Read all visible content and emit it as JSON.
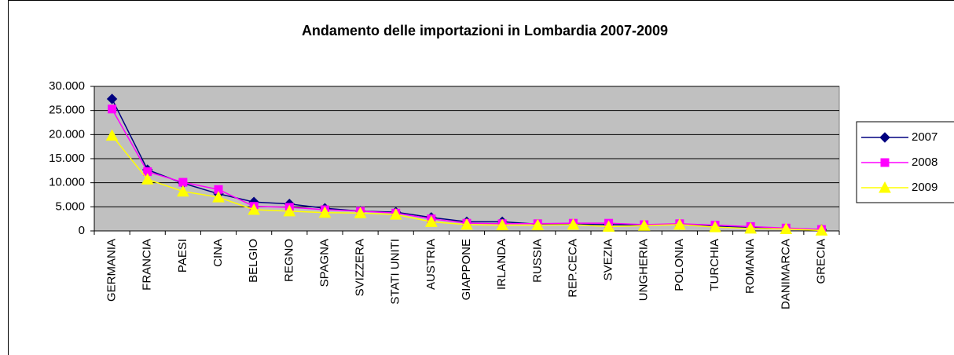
{
  "chart_data": {
    "type": "line",
    "title": "Andamento delle importazioni in Lombardia 2007-2009",
    "categories": [
      "GERMANIA",
      "FRANCIA",
      "PAESI",
      "CINA",
      "BELGIO",
      "REGNO",
      "SPAGNA",
      "SVIZZERA",
      "STATI UNITI",
      "AUSTRIA",
      "GIAPPONE",
      "IRLANDA",
      "RUSSIA",
      "REP.CECA",
      "SVEZIA",
      "UNGHERIA",
      "POLONIA",
      "TURCHIA",
      "ROMANIA",
      "DANIMARCA",
      "GRECIA"
    ],
    "series": [
      {
        "name": "2007",
        "color": "#000080",
        "marker": "diamond",
        "values": [
          27400,
          12700,
          9900,
          7700,
          6000,
          5600,
          4700,
          4100,
          3900,
          2800,
          1900,
          1900,
          1400,
          1400,
          1300,
          1200,
          1300,
          1000,
          700,
          500,
          300
        ]
      },
      {
        "name": "2008",
        "color": "#ff00ff",
        "marker": "square",
        "values": [
          25300,
          12300,
          10100,
          8600,
          5100,
          4900,
          4400,
          4100,
          3700,
          2500,
          1600,
          1500,
          1500,
          1600,
          1600,
          1300,
          1500,
          1200,
          900,
          600,
          300
        ]
      },
      {
        "name": "2009",
        "color": "#ffff00",
        "marker": "triangle",
        "values": [
          19800,
          10700,
          8200,
          7000,
          4400,
          4100,
          3800,
          3700,
          3400,
          1900,
          1300,
          1200,
          1200,
          1300,
          900,
          1100,
          1300,
          800,
          500,
          400,
          100
        ]
      }
    ],
    "ylim": [
      0,
      30000
    ],
    "yticks": [
      0,
      {
        "value": 5000,
        "label": "5.000"
      },
      {
        "value": 10000,
        "label": "10.000"
      },
      {
        "value": 15000,
        "label": "15.000"
      },
      {
        "value": 20000,
        "label": "20.000"
      },
      {
        "value": 25000,
        "label": "25.000"
      },
      {
        "value": 30000,
        "label": "30.000"
      }
    ],
    "grid": true,
    "legend": "right",
    "plot_background": "#c0c0c0"
  }
}
